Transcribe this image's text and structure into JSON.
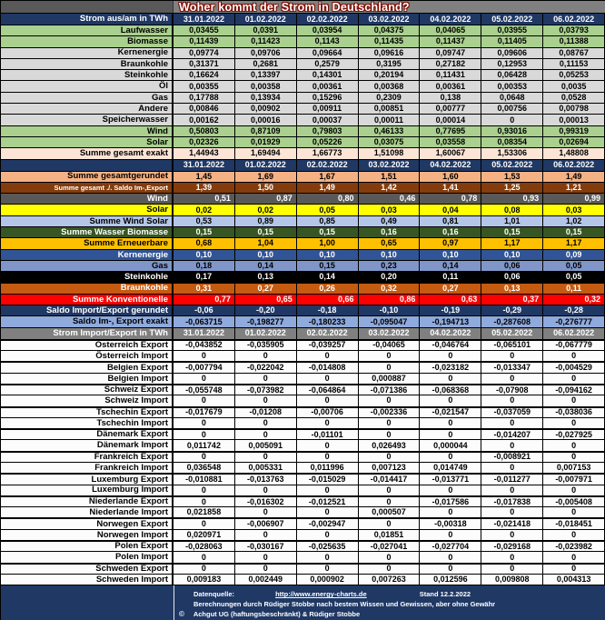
{
  "title": "Woher kommt der Strom in Deutschland?",
  "dates": [
    "31.01.2022",
    "01.02.2022",
    "02.02.2022",
    "03.02.2022",
    "04.02.2022",
    "05.02.2022",
    "06.02.2022"
  ],
  "header1_label": "Strom aus/am in TWh",
  "header3_label": "Strom Import/Export in TWh",
  "row_styles": {
    "green": {
      "bg": "#a9d08e",
      "fg": "#000000"
    },
    "gray": {
      "bg": "#d9d9d9",
      "fg": "#000000"
    },
    "peachx": {
      "bg": "#fce4d6",
      "fg": "#000000"
    },
    "navy": {
      "bg": "#1f3864",
      "fg": "#ffffff"
    },
    "peachr": {
      "bg": "#f4b183",
      "fg": "#000000"
    },
    "brown": {
      "bg": "#843c0c",
      "fg": "#ffffff"
    },
    "darkgray": {
      "bg": "#595959",
      "fg": "#ffffff"
    },
    "yellow": {
      "bg": "#ffff00",
      "fg": "#000000"
    },
    "ltblue": {
      "bg": "#b4c6e7",
      "fg": "#000000"
    },
    "dkgreen": {
      "bg": "#375623",
      "fg": "#ffffff"
    },
    "gold": {
      "bg": "#ffc000",
      "fg": "#000000"
    },
    "blue": {
      "bg": "#305496",
      "fg": "#ffffff"
    },
    "midblue": {
      "bg": "#8096c8",
      "fg": "#000000"
    },
    "black": {
      "bg": "#000000",
      "fg": "#ffffff"
    },
    "rust": {
      "bg": "#c55a11",
      "fg": "#ffffff"
    },
    "red": {
      "bg": "#ff0000",
      "fg": "#ffffff"
    },
    "saldolt": {
      "bg": "#8faadc",
      "fg": "#000000"
    },
    "grayhdr": {
      "bg": "#808080",
      "fg": "#ffffff"
    },
    "white": {
      "bg": "#fcfcfc",
      "fg": "#000000"
    }
  },
  "rows": [
    {
      "type": "dates",
      "style": "navy",
      "label": "Strom aus/am in TWh"
    },
    {
      "label": "Laufwasser",
      "style": "green",
      "values": [
        "0,03455",
        "0,0391",
        "0,03954",
        "0,04375",
        "0,04065",
        "0,03955",
        "0,03793"
      ]
    },
    {
      "label": "Biomasse",
      "style": "green",
      "values": [
        "0,11439",
        "0,11423",
        "0,1143",
        "0,11435",
        "0,11437",
        "0,11405",
        "0,11388"
      ]
    },
    {
      "label": "Kernenergie",
      "style": "gray",
      "values": [
        "0,09774",
        "0,09706",
        "0,09664",
        "0,09616",
        "0,09747",
        "0,09606",
        "0,08767"
      ]
    },
    {
      "label": "Braunkohle",
      "style": "gray",
      "values": [
        "0,31371",
        "0,2681",
        "0,2579",
        "0,3195",
        "0,27182",
        "0,12953",
        "0,11153"
      ]
    },
    {
      "label": "Steinkohle",
      "style": "gray",
      "values": [
        "0,16624",
        "0,13397",
        "0,14301",
        "0,20194",
        "0,11431",
        "0,06428",
        "0,05253"
      ]
    },
    {
      "label": "Öl",
      "style": "gray",
      "values": [
        "0,00355",
        "0,00358",
        "0,00361",
        "0,00368",
        "0,00361",
        "0,00353",
        "0,0035"
      ]
    },
    {
      "label": "Gas",
      "style": "gray",
      "values": [
        "0,17788",
        "0,13934",
        "0,15296",
        "0,2309",
        "0,138",
        "0,0648",
        "0,0528"
      ]
    },
    {
      "label": "Andere",
      "style": "gray",
      "values": [
        "0,00846",
        "0,00902",
        "0,00911",
        "0,00851",
        "0,00777",
        "0,00756",
        "0,00798"
      ]
    },
    {
      "label": "Speicherwasser",
      "style": "gray",
      "values": [
        "0,00162",
        "0,00016",
        "0,00037",
        "0,00011",
        "0,00014",
        "0",
        "0,00013"
      ]
    },
    {
      "label": "Wind",
      "style": "green",
      "values": [
        "0,50803",
        "0,87109",
        "0,79803",
        "0,46133",
        "0,77695",
        "0,93016",
        "0,99319"
      ]
    },
    {
      "label": "Solar",
      "style": "green",
      "values": [
        "0,02326",
        "0,01929",
        "0,05226",
        "0,03075",
        "0,03558",
        "0,08354",
        "0,02694"
      ]
    },
    {
      "label": "Summe gesamt exakt",
      "style": "peachx",
      "values": [
        "1,44943",
        "1,69494",
        "1,66773",
        "1,51098",
        "1,60067",
        "1,53306",
        "1,48808"
      ]
    },
    {
      "type": "dates",
      "style": "navy",
      "label": ""
    },
    {
      "label": "Summe gesamtgerundet",
      "style": "peachr",
      "values": [
        "1,45",
        "1,69",
        "1,67",
        "1,51",
        "1,60",
        "1,53",
        "1,49"
      ]
    },
    {
      "label": "Summe gesamt ./. Saldo Im-,Export",
      "style": "brown",
      "small": true,
      "values": [
        "1,39",
        "1,50",
        "1,49",
        "1,42",
        "1,41",
        "1,25",
        "1,21"
      ]
    },
    {
      "label": "Wind",
      "style": "darkgray",
      "align": "right",
      "values": [
        "0,51",
        "0,87",
        "0,80",
        "0,46",
        "0,78",
        "0,93",
        "0,99"
      ]
    },
    {
      "label": "Solar",
      "style": "yellow",
      "values": [
        "0,02",
        "0,02",
        "0,05",
        "0,03",
        "0,04",
        "0,08",
        "0,03"
      ]
    },
    {
      "label": "Summe Wind Solar",
      "style": "ltblue",
      "values": [
        "0,53",
        "0,89",
        "0,85",
        "0,49",
        "0,81",
        "1,01",
        "1,02"
      ]
    },
    {
      "label": "Summe Wasser Biomasse",
      "style": "dkgreen",
      "values": [
        "0,15",
        "0,15",
        "0,15",
        "0,16",
        "0,16",
        "0,15",
        "0,15"
      ]
    },
    {
      "label": "Summe Erneuerbare",
      "style": "gold",
      "values": [
        "0,68",
        "1,04",
        "1,00",
        "0,65",
        "0,97",
        "1,17",
        "1,17"
      ]
    },
    {
      "label": "Kernenergie",
      "style": "blue",
      "values": [
        "0,10",
        "0,10",
        "0,10",
        "0,10",
        "0,10",
        "0,10",
        "0,09"
      ]
    },
    {
      "label": "Gas",
      "style": "midblue",
      "values": [
        "0,18",
        "0,14",
        "0,15",
        "0,23",
        "0,14",
        "0,06",
        "0,05"
      ]
    },
    {
      "label": "Steinkohle",
      "style": "black",
      "values": [
        "0,17",
        "0,13",
        "0,14",
        "0,20",
        "0,11",
        "0,06",
        "0,05"
      ]
    },
    {
      "label": "Braunkohle",
      "style": "rust",
      "values": [
        "0,31",
        "0,27",
        "0,26",
        "0,32",
        "0,27",
        "0,13",
        "0,11"
      ]
    },
    {
      "label": "Summe Konventionelle",
      "style": "red",
      "align": "right",
      "values": [
        "0,77",
        "0,65",
        "0,66",
        "0,86",
        "0,63",
        "0,37",
        "0,32"
      ]
    },
    {
      "label": "Saldo Import/Export gerundet",
      "style": "navy",
      "values": [
        "-0,06",
        "-0,20",
        "-0,18",
        "-0,10",
        "-0,19",
        "-0,29",
        "-0,28"
      ]
    },
    {
      "label": "Saldo Im-, Export exakt",
      "style": "saldolt",
      "values": [
        "-0,063715",
        "-0,198277",
        "-0,180233",
        "-0,095047",
        "-0,194713",
        "-0,287608",
        "-0,276777"
      ]
    },
    {
      "type": "dates",
      "style": "grayhdr",
      "label": "Strom Import/Export in TWh"
    },
    {
      "label": "Österreich Export",
      "style": "white",
      "sep": true,
      "values": [
        "-0,043852",
        "-0,035905",
        "-0,039257",
        "-0,04065",
        "-0,046764",
        "-0,065101",
        "-0,067779"
      ]
    },
    {
      "label": "Österreich Import",
      "style": "white",
      "values": [
        "0",
        "0",
        "0",
        "0",
        "0",
        "0",
        "0"
      ]
    },
    {
      "label": "Belgien Export",
      "style": "white",
      "sep": true,
      "values": [
        "-0,007794",
        "-0,022042",
        "-0,014808",
        "0",
        "-0,023182",
        "-0,013347",
        "-0,004529"
      ]
    },
    {
      "label": "Belgien Import",
      "style": "white",
      "values": [
        "0",
        "0",
        "0",
        "0,000887",
        "0",
        "0",
        "0"
      ]
    },
    {
      "label": "Schweiz Export",
      "style": "white",
      "sep": true,
      "values": [
        "-0,055748",
        "-0,073982",
        "-0,064864",
        "-0,071386",
        "-0,068368",
        "-0,07908",
        "-0,094162"
      ]
    },
    {
      "label": "Schweiz Import",
      "style": "white",
      "values": [
        "0",
        "0",
        "0",
        "0",
        "0",
        "0",
        "0"
      ]
    },
    {
      "label": "Tschechin Export",
      "style": "white",
      "sep": true,
      "values": [
        "-0,017679",
        "-0,01208",
        "-0,00706",
        "-0,002336",
        "-0,021547",
        "-0,037059",
        "-0,038036"
      ]
    },
    {
      "label": "Tschechin Import",
      "style": "white",
      "values": [
        "0",
        "0",
        "0",
        "0",
        "0",
        "0",
        "0"
      ]
    },
    {
      "label": "Dänemark Export",
      "style": "white",
      "sep": true,
      "values": [
        "0",
        "0",
        "-0,01101",
        "0",
        "0",
        "-0,014207",
        "-0,027925"
      ]
    },
    {
      "label": "Dänemark Import",
      "style": "white",
      "values": [
        "0,011742",
        "0,005091",
        "0",
        "0,026493",
        "0,000044",
        "0",
        "0"
      ]
    },
    {
      "label": "Frankreich Export",
      "style": "white",
      "sep": true,
      "values": [
        "0",
        "0",
        "0",
        "0",
        "0",
        "-0,008921",
        "0"
      ]
    },
    {
      "label": "Frankreich Import",
      "style": "white",
      "values": [
        "0,036548",
        "0,005331",
        "0,011996",
        "0,007123",
        "0,014749",
        "0",
        "0,007153"
      ]
    },
    {
      "label": "Luxemburg Export",
      "style": "white",
      "sep": true,
      "values": [
        "-0,010881",
        "-0,013763",
        "-0,015029",
        "-0,014417",
        "-0,013771",
        "-0,011277",
        "-0,007971"
      ]
    },
    {
      "label": "Luxemburg Import",
      "style": "white",
      "values": [
        "0",
        "0",
        "0",
        "0",
        "0",
        "0",
        "0"
      ]
    },
    {
      "label": "Niederlande Export",
      "style": "white",
      "sep": true,
      "values": [
        "0",
        "-0,016302",
        "-0,012521",
        "0",
        "-0,017586",
        "-0,017838",
        "-0,005408"
      ]
    },
    {
      "label": "Niederlande Import",
      "style": "white",
      "values": [
        "0,021858",
        "0",
        "0",
        "0,000507",
        "0",
        "0",
        "0"
      ]
    },
    {
      "label": "Norwegen Export",
      "style": "white",
      "sep": true,
      "values": [
        "0",
        "-0,006907",
        "-0,002947",
        "0",
        "-0,00318",
        "-0,021418",
        "-0,018451"
      ]
    },
    {
      "label": "Norwegen Import",
      "style": "white",
      "values": [
        "0,020971",
        "0",
        "0",
        "0,01851",
        "0",
        "0",
        "0"
      ]
    },
    {
      "label": "Polen Export",
      "style": "white",
      "sep": true,
      "values": [
        "-0,028063",
        "-0,030167",
        "-0,025635",
        "-0,027041",
        "-0,027704",
        "-0,029168",
        "-0,023982"
      ]
    },
    {
      "label": "Polen Import",
      "style": "white",
      "values": [
        "0",
        "0",
        "0",
        "0",
        "0",
        "0",
        "0"
      ]
    },
    {
      "label": "Schweden Export",
      "style": "white",
      "sep": true,
      "values": [
        "0",
        "0",
        "0",
        "0",
        "0",
        "0",
        "0"
      ]
    },
    {
      "label": "Schweden Import",
      "style": "white",
      "values": [
        "0,009183",
        "0,002449",
        "0,000902",
        "0,007263",
        "0,012596",
        "0,009808",
        "0,004313"
      ]
    }
  ],
  "footer": {
    "source_label": "Datenquelle:",
    "source_link": "http://www.energy-charts.de",
    "stand": "Stand 12.2.2022",
    "note": "Berechnungen durch Rüdiger Stobbe nach bestem Wissen und Gewissen, aber ohne Gewähr",
    "copyright_icon": "©",
    "credit": "Achgut UG (haftungsbeschränkt) & Rüdiger Stobbe"
  }
}
